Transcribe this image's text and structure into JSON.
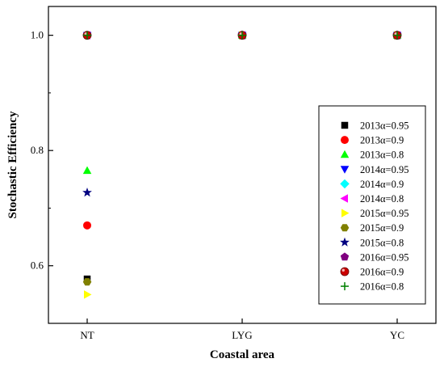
{
  "chart_data": {
    "type": "scatter",
    "xlabel": "Coastal area",
    "ylabel": "Stochastic Efficiency",
    "categories": [
      "NT",
      "LYG",
      "YC"
    ],
    "ylim": [
      0.5,
      1.05
    ],
    "yticks": [
      0.6,
      0.8,
      1.0
    ],
    "ytick_labels": [
      "0.6",
      "0.8",
      "1.0"
    ],
    "grid": false,
    "legend_position": "right",
    "series": [
      {
        "name": "2013α=0.95",
        "marker": "square",
        "color": "#000000",
        "values": [
          0.577,
          1.0,
          1.0
        ]
      },
      {
        "name": "2013α=0.9",
        "marker": "circle",
        "color": "#ff0000",
        "values": [
          0.67,
          1.0,
          1.0
        ]
      },
      {
        "name": "2013α=0.8",
        "marker": "triangle-up",
        "color": "#00ff00",
        "values": [
          0.765,
          1.0,
          1.0
        ]
      },
      {
        "name": "2014α=0.95",
        "marker": "triangle-down",
        "color": "#0000ff",
        "values": [
          1.0,
          1.0,
          1.0
        ]
      },
      {
        "name": "2014α=0.9",
        "marker": "diamond",
        "color": "#00ffff",
        "values": [
          1.0,
          1.0,
          1.0
        ]
      },
      {
        "name": "2014α=0.8",
        "marker": "triangle-left",
        "color": "#ff00ff",
        "values": [
          1.0,
          1.0,
          1.0
        ]
      },
      {
        "name": "2015α=0.95",
        "marker": "triangle-right",
        "color": "#ffff00",
        "values": [
          0.55,
          1.0,
          1.0
        ]
      },
      {
        "name": "2015α=0.9",
        "marker": "hexagon",
        "color": "#808000",
        "values": [
          0.572,
          1.0,
          1.0
        ]
      },
      {
        "name": "2015α=0.8",
        "marker": "star",
        "color": "#000080",
        "values": [
          0.727,
          1.0,
          1.0
        ]
      },
      {
        "name": "2016α=0.95",
        "marker": "pentagon",
        "color": "#800080",
        "values": [
          1.0,
          1.0,
          1.0
        ]
      },
      {
        "name": "2016α=0.9",
        "marker": "sphere",
        "color": "#cc0000",
        "values": [
          1.0,
          1.0,
          1.0
        ]
      },
      {
        "name": "2016α=0.8",
        "marker": "plus",
        "color": "#008000",
        "values": [
          1.0,
          1.0,
          1.0
        ]
      }
    ]
  }
}
